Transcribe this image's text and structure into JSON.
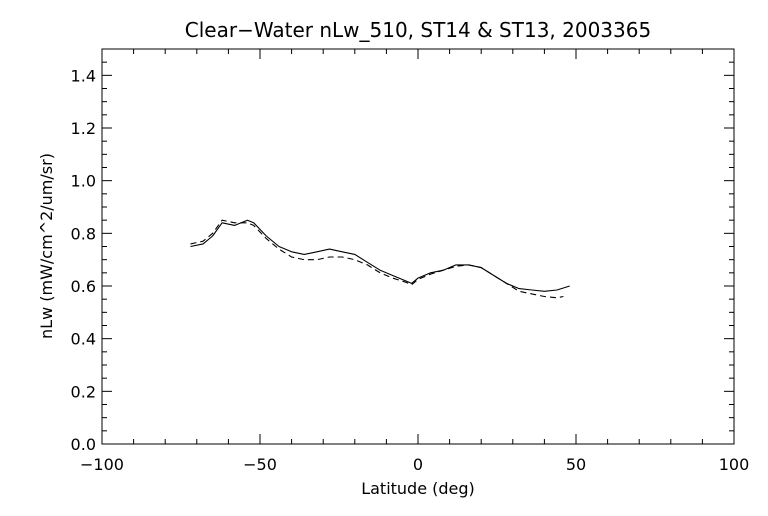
{
  "chart_data": {
    "type": "line",
    "title": "Clear−Water nLw_510, ST14 & ST13, 2003365",
    "xlabel": "Latitude (deg)",
    "ylabel": "nLw (mW/cm^2/um/sr)",
    "xlim": [
      -100,
      100
    ],
    "ylim": [
      0.0,
      1.5
    ],
    "x_ticks": [
      -100,
      -50,
      0,
      50,
      100
    ],
    "x_tick_labels": [
      "−100",
      "−50",
      "0",
      "50",
      "100"
    ],
    "y_ticks": [
      0.0,
      0.2,
      0.4,
      0.6,
      0.8,
      1.0,
      1.2,
      1.4
    ],
    "y_tick_labels": [
      "0.0",
      "0.2",
      "0.4",
      "0.6",
      "0.8",
      "1.0",
      "1.2",
      "1.4"
    ],
    "grid": false,
    "series": [
      {
        "style": "solid",
        "color": "#000000",
        "x": [
          -72,
          -68,
          -65,
          -62,
          -58,
          -54,
          -52,
          -48,
          -44,
          -40,
          -36,
          -32,
          -28,
          -24,
          -20,
          -16,
          -12,
          -8,
          -4,
          -2,
          0,
          4,
          8,
          12,
          16,
          20,
          24,
          28,
          32,
          36,
          40,
          44,
          48
        ],
        "y": [
          0.75,
          0.76,
          0.79,
          0.84,
          0.83,
          0.85,
          0.84,
          0.79,
          0.75,
          0.73,
          0.72,
          0.73,
          0.74,
          0.73,
          0.72,
          0.69,
          0.66,
          0.64,
          0.62,
          0.61,
          0.63,
          0.65,
          0.66,
          0.68,
          0.68,
          0.67,
          0.64,
          0.61,
          0.59,
          0.585,
          0.58,
          0.585,
          0.6
        ]
      },
      {
        "style": "dashed",
        "color": "#000000",
        "x": [
          -72,
          -68,
          -65,
          -62,
          -58,
          -54,
          -52,
          -48,
          -44,
          -40,
          -36,
          -32,
          -28,
          -24,
          -20,
          -16,
          -12,
          -8,
          -4,
          -2,
          0,
          4,
          8,
          12,
          16,
          20,
          24,
          28,
          32,
          36,
          40,
          44,
          46
        ],
        "y": [
          0.76,
          0.77,
          0.8,
          0.85,
          0.84,
          0.84,
          0.83,
          0.78,
          0.74,
          0.71,
          0.7,
          0.7,
          0.71,
          0.71,
          0.7,
          0.68,
          0.65,
          0.63,
          0.615,
          0.605,
          0.625,
          0.645,
          0.66,
          0.675,
          0.68,
          0.67,
          0.64,
          0.61,
          0.58,
          0.57,
          0.56,
          0.555,
          0.56
        ]
      }
    ]
  }
}
